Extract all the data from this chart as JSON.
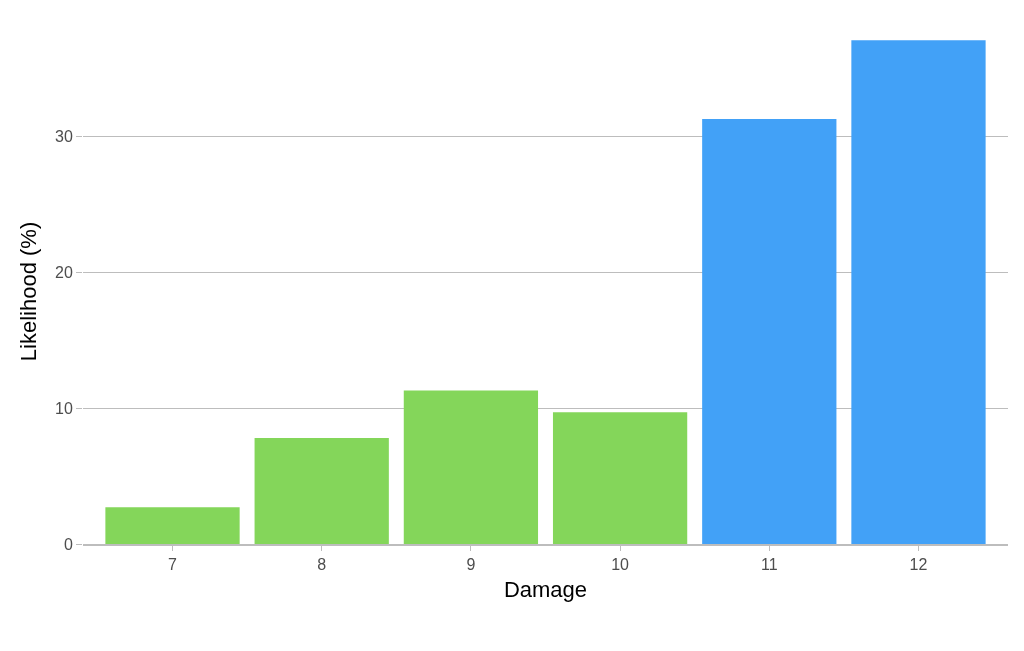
{
  "chart_data": {
    "type": "bar",
    "xlabel": "Damage",
    "ylabel": "Likelihood (%)",
    "categories": [
      "7",
      "8",
      "9",
      "10",
      "11",
      "12"
    ],
    "values": [
      2.7,
      7.8,
      11.3,
      9.7,
      31.3,
      37.1
    ],
    "colors": [
      "#84d65a",
      "#84d65a",
      "#84d65a",
      "#84d65a",
      "#42a1f7",
      "#42a1f7"
    ],
    "ylim": [
      0,
      37.2
    ],
    "yticks": [
      0,
      10,
      20,
      30
    ],
    "grid": "y"
  }
}
